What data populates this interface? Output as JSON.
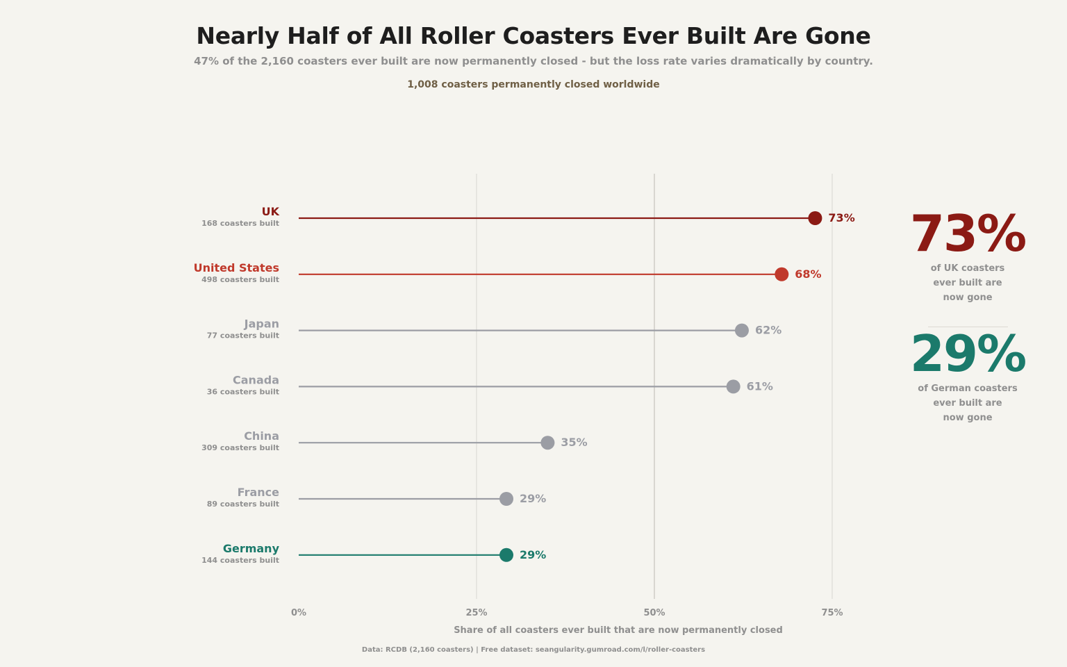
{
  "title": "Nearly Half of All Roller Coasters Ever Built Are Gone",
  "subtitle": "47% of the 2,160 coasters ever built are now permanently closed - but the loss rate varies dramatically by country.",
  "highlight": "1,008 coasters permanently closed worldwide",
  "source": "Data: RCDB (2,160 coasters)  |  Free dataset: seangularity.gumroad.com/l/roller-coasters",
  "callouts": [
    {
      "value": "73%",
      "caption": [
        "of UK coasters",
        "ever built are",
        "now gone"
      ],
      "color": "#8b1a14"
    },
    {
      "value": "29%",
      "caption": [
        "of German coasters",
        "ever built are",
        "now gone"
      ],
      "color": "#1b7a6b"
    }
  ],
  "chart_data": {
    "type": "lollipop",
    "xlabel": "Share of all coasters ever built that are now permanently closed",
    "xlim": [
      0,
      75
    ],
    "xticks": [
      0,
      25,
      50,
      75
    ],
    "xtick_labels": [
      "0%",
      "25%",
      "50%",
      "75%"
    ],
    "grid": "vertical",
    "categories": [
      "UK",
      "United States",
      "Japan",
      "Canada",
      "China",
      "France",
      "Germany"
    ],
    "built_labels": [
      "168 coasters built",
      "498 coasters built",
      "77 coasters built",
      "36 coasters built",
      "309 coasters built",
      "89 coasters built",
      "144 coasters built"
    ],
    "values": [
      72.6,
      67.9,
      62.3,
      61.1,
      35.0,
      29.2,
      29.2
    ],
    "value_labels": [
      "73%",
      "68%",
      "62%",
      "61%",
      "35%",
      "29%",
      "29%"
    ],
    "colors": [
      "#8b1a14",
      "#c0392b",
      "#9b9da4",
      "#9b9da4",
      "#9b9da4",
      "#9b9da4",
      "#1b7a6b"
    ]
  }
}
